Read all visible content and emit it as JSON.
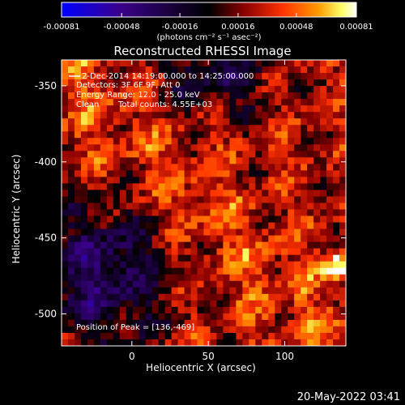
{
  "chart_data": {
    "type": "heatmap",
    "title": "Reconstructed RHESSI Image",
    "xlabel": "Heliocentric X (arcsec)",
    "ylabel": "Heliocentric Y (arcsec)",
    "xlim": [
      -46,
      140
    ],
    "ylim": [
      -521,
      -333
    ],
    "x_ticks": [
      0,
      50,
      100
    ],
    "y_ticks": [
      -350,
      -400,
      -450,
      -500
    ],
    "colorbar": {
      "range": [
        -0.00081,
        0.00081
      ],
      "tick_values": [
        -0.00081,
        -0.00048,
        -0.00016,
        0.00016,
        0.00048,
        0.00081
      ],
      "tick_labels": [
        "-0.00081",
        "-0.00048",
        "-0.00016",
        "0.00016",
        "0.00048",
        "0.00081"
      ],
      "units": "(photons cm⁻² s⁻¹ asec⁻²)",
      "colors": [
        "#0000ff",
        "#3a008a",
        "#000000",
        "#8a0000",
        "#ff3300",
        "#ff9900",
        "#ffff66",
        "#ffffff"
      ]
    },
    "annotations": {
      "time_range": "2-Dec-2014 14:19:00.000 to 14:25:00.000",
      "detectors": "Detectors: 3F 6F 9F, Att 0",
      "energy_range": "Energy Range: 12.0 - 25.0 keV",
      "method": "Clean",
      "total_counts": "Total counts: 4.55E+03",
      "peak": "Position of Peak = [136,-469]"
    },
    "peak": {
      "x": 136,
      "y": -469
    },
    "grid": false
  },
  "footer": {
    "date": "20-May-2022 03:41"
  }
}
